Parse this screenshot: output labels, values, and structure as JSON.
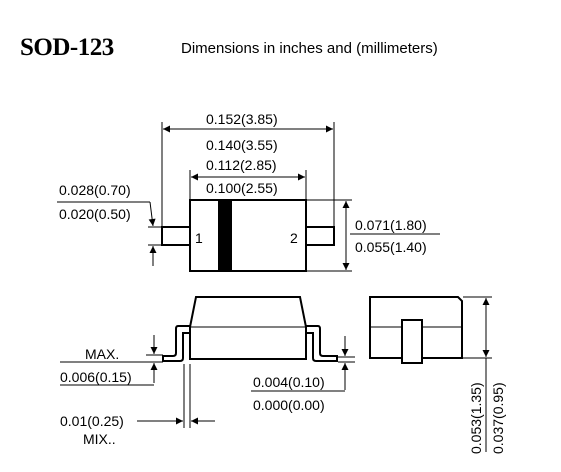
{
  "header": {
    "package_name": "SOD-123",
    "subtitle": "Dimensions in inches and (millimeters)"
  },
  "top_view": {
    "overall_length_max": "0.152(3.85)",
    "overall_length_min": "0.140(3.55)",
    "body_length_max": "0.112(2.85)",
    "body_length_min": "0.100(2.55)",
    "lead_width_max": "0.028(0.70)",
    "lead_width_min": "0.020(0.50)",
    "body_width_max": "0.071(1.80)",
    "body_width_min": "0.055(1.40)",
    "pin1_label": "1",
    "pin2_label": "2"
  },
  "side_view": {
    "max_label": "MAX.",
    "lead_thickness": "0.006(0.15)",
    "standoff_max": "0.004(0.10)",
    "standoff_min": "0.000(0.00)",
    "lead_length": "0.01(0.25)",
    "min_label": "MIX.."
  },
  "end_view": {
    "height_max": "0.053(1.35)",
    "height_min": "0.037(0.95)"
  }
}
